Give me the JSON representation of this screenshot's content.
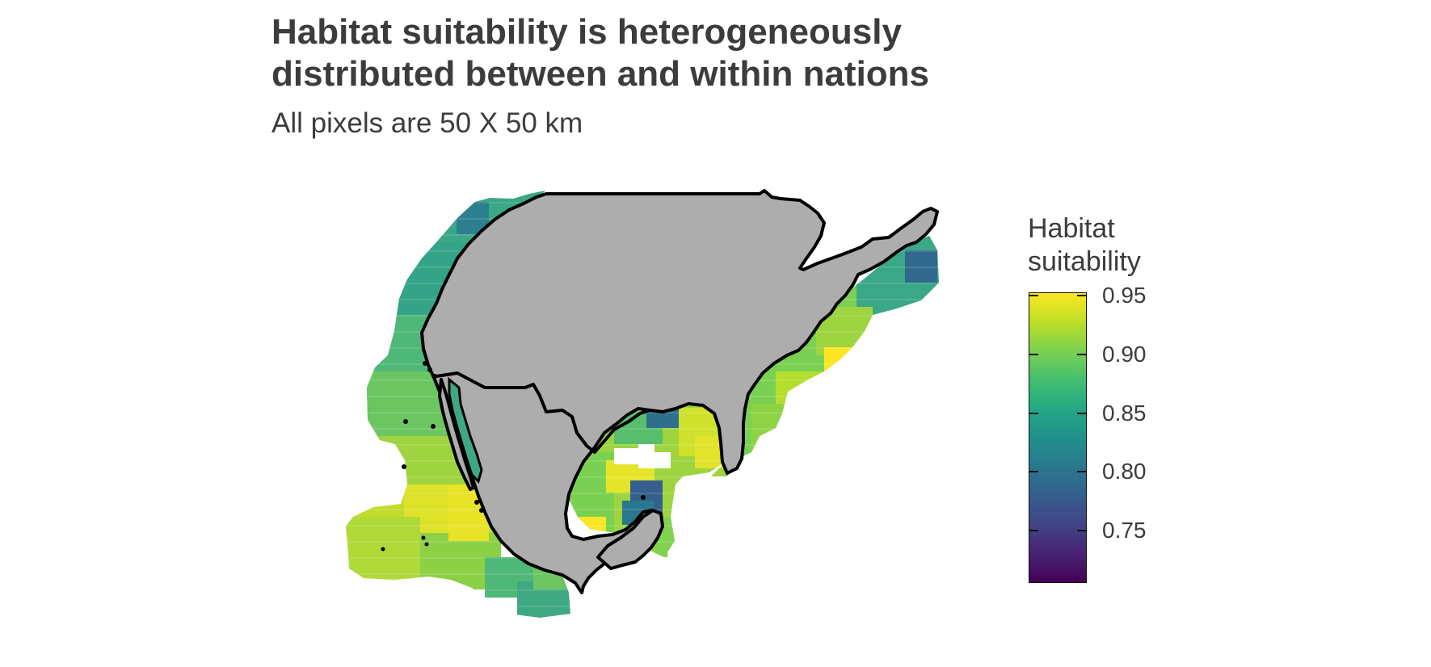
{
  "title": {
    "line1": "Habitat suitability is heterogeneously",
    "line2": "distributed between and within nations"
  },
  "subtitle": "All pixels are 50 X 50 km",
  "legend": {
    "title_line1": "Habitat",
    "title_line2": "suitability",
    "ticks": [
      {
        "value": 0.95,
        "label": "0.95"
      },
      {
        "value": 0.9,
        "label": "0.90"
      },
      {
        "value": 0.85,
        "label": "0.85"
      },
      {
        "value": 0.8,
        "label": "0.80"
      },
      {
        "value": 0.75,
        "label": "0.75"
      }
    ],
    "range": [
      0.705,
      0.953
    ],
    "palette": "viridis"
  },
  "colors": {
    "land": "#adadad",
    "border": "#000000",
    "text": "#3c3c3c"
  }
}
